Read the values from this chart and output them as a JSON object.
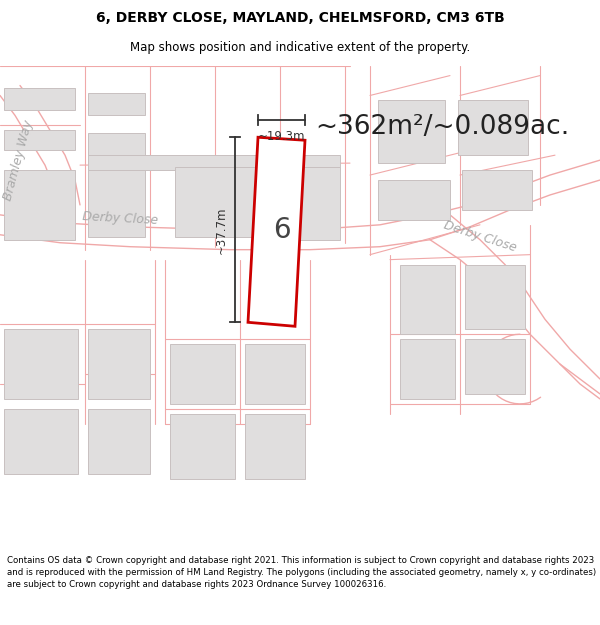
{
  "title_line1": "6, DERBY CLOSE, MAYLAND, CHELMSFORD, CM3 6TB",
  "title_line2": "Map shows position and indicative extent of the property.",
  "area_text": "~362m²/~0.089ac.",
  "label_number": "6",
  "dim_width": "~19.3m",
  "dim_height": "~37.7m",
  "road_label_left": "Derby Close",
  "road_label_right": "Derby Close",
  "road_label_diag": "Bramley Way",
  "footer_text": "Contains OS data © Crown copyright and database right 2021. This information is subject to Crown copyright and database rights 2023 and is reproduced with the permission of HM Land Registry. The polygons (including the associated geometry, namely x, y co-ordinates) are subject to Crown copyright and database rights 2023 Ordnance Survey 100026316.",
  "map_bg": "#f7f5f5",
  "road_line_color": "#f0a8a8",
  "road_label_color": "#aaaaaa",
  "building_fill": "#e0dede",
  "building_edge": "#c8c0c0",
  "highlight_edge": "#cc0000",
  "dim_line_color": "#333333",
  "title_fontsize": 10,
  "subtitle_fontsize": 8.5,
  "area_fontsize": 19,
  "label_fontsize": 20,
  "road_fontsize": 9,
  "footer_fontsize": 6.2
}
